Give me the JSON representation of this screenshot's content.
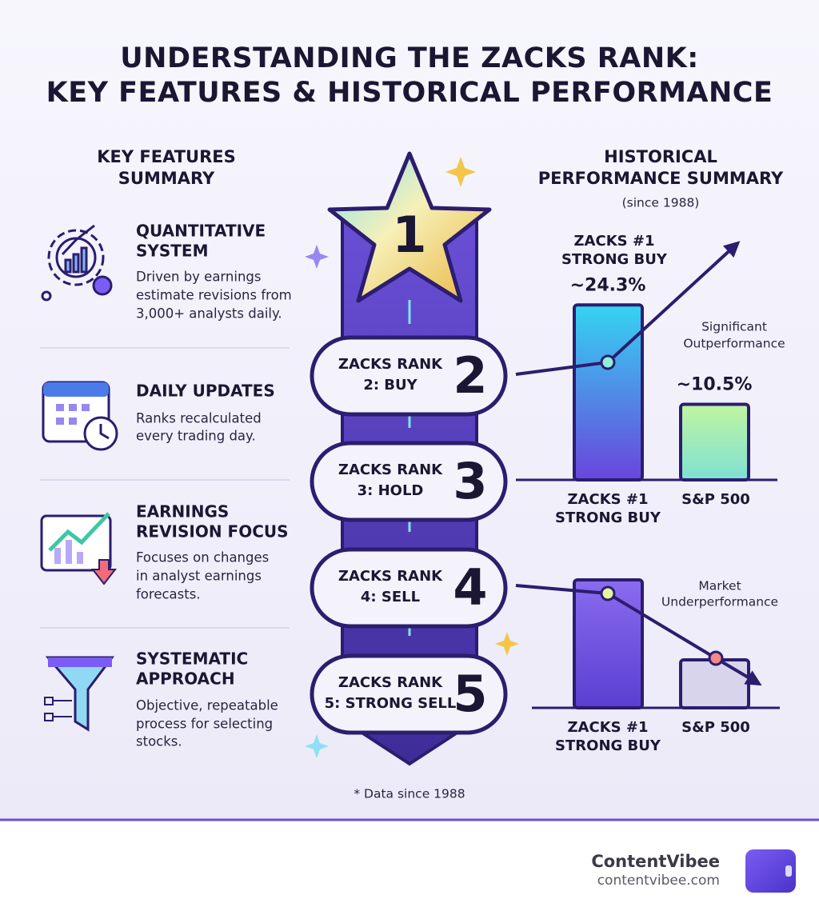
{
  "title": [
    "UNDERSTANDING THE ZACKS RANK:",
    "KEY FEATURES & HISTORICAL PERFORMANCE"
  ],
  "features": {
    "heading": [
      "KEY FEATURES",
      "SUMMARY"
    ],
    "items": [
      {
        "title": [
          "QUANTITATIVE",
          "SYSTEM"
        ],
        "description": [
          "Driven by earnings",
          "estimate revisions from",
          "3,000+ analysts daily."
        ]
      },
      {
        "title": [
          "DAILY UPDATES"
        ],
        "description": [
          "Ranks recalculated",
          "every trading day."
        ]
      },
      {
        "title": [
          "EARNINGS",
          "REVISION FOCUS"
        ],
        "description": [
          "Focuses on changes",
          "in analyst earnings",
          "forecasts."
        ]
      },
      {
        "title": [
          "SYSTEMATIC",
          "APPROACH"
        ],
        "description": [
          "Objective, repeatable",
          "process for selecting",
          "stocks."
        ]
      }
    ]
  },
  "ranks": {
    "top": 1,
    "items": [
      {
        "label": [
          "ZACKS RANK",
          "2: BUY"
        ],
        "number": 2
      },
      {
        "label": [
          "ZACKS RANK",
          "3: HOLD"
        ],
        "number": 3
      },
      {
        "label": [
          "ZACKS RANK",
          "4: SELL"
        ],
        "number": 4
      },
      {
        "label": [
          "ZACKS RANK",
          "5: STRONG SELL"
        ],
        "number": 5
      }
    ]
  },
  "performance": {
    "heading": [
      "HISTORICAL",
      "PERFORMANCE SUMMARY"
    ],
    "subheading": "(since 1988)",
    "outperformance": {
      "top_label": [
        "ZACKS #1",
        "STRONG BUY"
      ],
      "bars": [
        {
          "value": 24.3,
          "label": "~24.3%"
        },
        {
          "value": 10.5,
          "label": "~10.5%"
        }
      ],
      "categories": [
        [
          "ZACKS #1",
          "STRONG BUY"
        ],
        [
          "S&P 500"
        ]
      ],
      "annotation": [
        "Significant",
        "Outperformance"
      ]
    },
    "underperformance": {
      "categories": [
        [
          "ZACKS #1",
          "STRONG BUY"
        ],
        [
          "S&P 500"
        ]
      ],
      "annotation": [
        "Market",
        "Underperformance"
      ]
    }
  },
  "footnote": "* Data since 1988",
  "brand": {
    "name": "ContentVibee",
    "url": "contentvibee.com"
  }
}
